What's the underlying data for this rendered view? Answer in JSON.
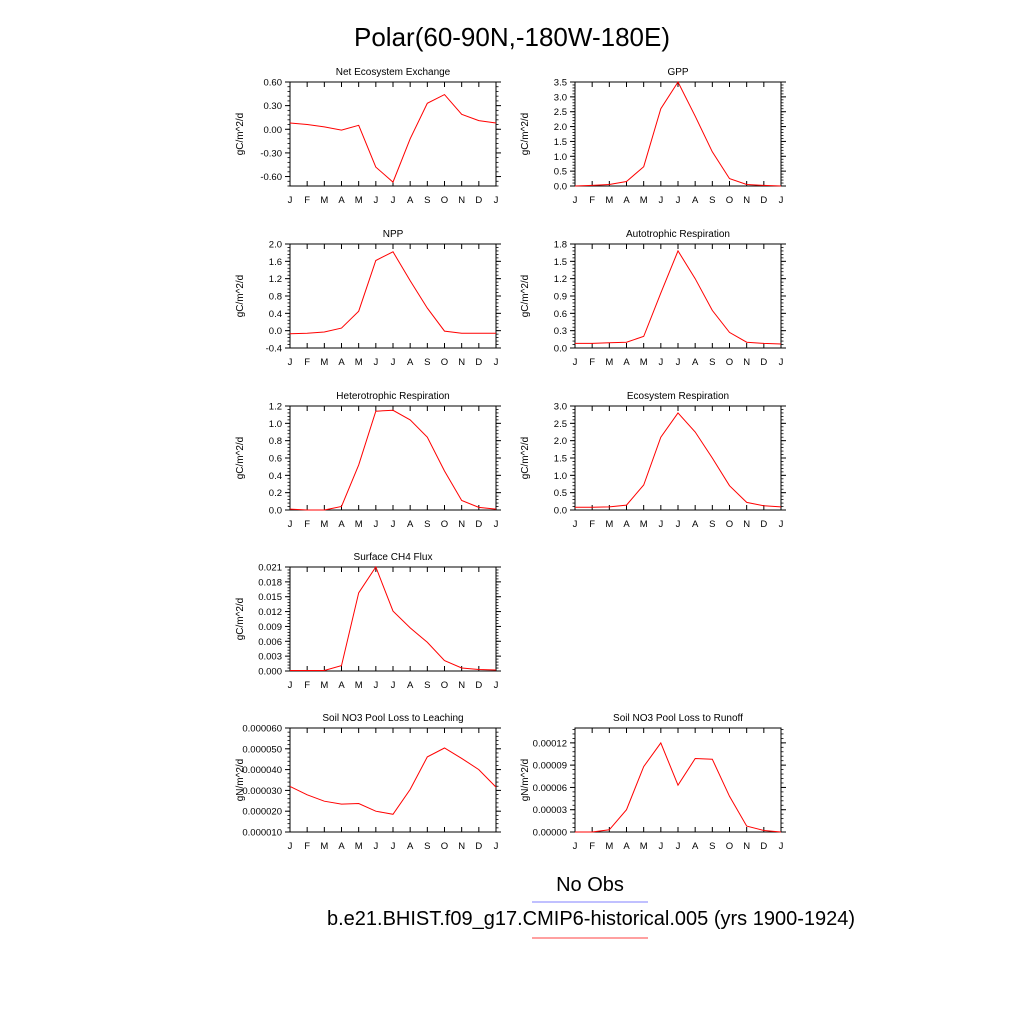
{
  "page": {
    "title": "Polar(60-90N,-180W-180E)",
    "legend": [
      {
        "label": "No Obs",
        "color": "#8080ff"
      },
      {
        "label": "b.e21.BHIST.f09_g17.CMIP6-historical.005 (yrs 1900-1924)",
        "color": "#ff4040"
      }
    ]
  },
  "chart_data": [
    {
      "type": "line",
      "title": "Net Ecosystem Exchange",
      "ylabel": "gC/m^2/d",
      "xlabel": "",
      "x": [
        "J",
        "F",
        "M",
        "A",
        "M",
        "J",
        "J",
        "A",
        "S",
        "O",
        "N",
        "D",
        "J"
      ],
      "ylim": [
        -0.72,
        0.6
      ],
      "yticks": [
        -0.6,
        -0.3,
        0.0,
        0.3,
        0.6
      ],
      "ytick_labels": [
        "-0.60",
        "-0.30",
        "0.00",
        "0.30",
        "0.60"
      ],
      "series": [
        {
          "color": "#ff0000",
          "values": [
            0.08,
            0.06,
            0.03,
            -0.01,
            0.05,
            -0.48,
            -0.67,
            -0.12,
            0.33,
            0.44,
            0.19,
            0.11,
            0.08
          ]
        }
      ]
    },
    {
      "type": "line",
      "title": "GPP",
      "ylabel": "gC/m^2/d",
      "xlabel": "",
      "x": [
        "J",
        "F",
        "M",
        "A",
        "M",
        "J",
        "J",
        "A",
        "S",
        "O",
        "N",
        "D",
        "J"
      ],
      "ylim": [
        0,
        3.5
      ],
      "yticks": [
        0,
        0.5,
        1.0,
        1.5,
        2.0,
        2.5,
        3.0,
        3.5
      ],
      "ytick_labels": [
        "0.0",
        "0.5",
        "1.0",
        "1.5",
        "2.0",
        "2.5",
        "3.0",
        "3.5"
      ],
      "series": [
        {
          "color": "#ff0000",
          "values": [
            0.0,
            0.02,
            0.05,
            0.15,
            0.65,
            2.6,
            3.5,
            2.35,
            1.15,
            0.25,
            0.05,
            0.02,
            0.0
          ]
        }
      ]
    },
    {
      "type": "line",
      "title": "NPP",
      "ylabel": "gC/m^2/d",
      "xlabel": "",
      "x": [
        "J",
        "F",
        "M",
        "A",
        "M",
        "J",
        "J",
        "A",
        "S",
        "O",
        "N",
        "D",
        "J"
      ],
      "ylim": [
        -0.4,
        2.0
      ],
      "yticks": [
        -0.4,
        0.0,
        0.4,
        0.8,
        1.2,
        1.6,
        2.0
      ],
      "ytick_labels": [
        "-0.4",
        "0.0",
        "0.4",
        "0.8",
        "1.2",
        "1.6",
        "2.0"
      ],
      "series": [
        {
          "color": "#ff0000",
          "values": [
            -0.07,
            -0.06,
            -0.03,
            0.06,
            0.45,
            1.62,
            1.82,
            1.15,
            0.52,
            -0.01,
            -0.06,
            -0.06,
            -0.06
          ]
        }
      ]
    },
    {
      "type": "line",
      "title": "Autotrophic Respiration",
      "ylabel": "gC/m^2/d",
      "xlabel": "",
      "x": [
        "J",
        "F",
        "M",
        "A",
        "M",
        "J",
        "J",
        "A",
        "S",
        "O",
        "N",
        "D",
        "J"
      ],
      "ylim": [
        0,
        1.8
      ],
      "yticks": [
        0,
        0.3,
        0.6,
        0.9,
        1.2,
        1.5,
        1.8
      ],
      "ytick_labels": [
        "0.0",
        "0.3",
        "0.6",
        "0.9",
        "1.2",
        "1.5",
        "1.8"
      ],
      "series": [
        {
          "color": "#ff0000",
          "values": [
            0.08,
            0.08,
            0.09,
            0.1,
            0.2,
            0.95,
            1.68,
            1.2,
            0.65,
            0.27,
            0.1,
            0.08,
            0.07
          ]
        }
      ]
    },
    {
      "type": "line",
      "title": "Heterotrophic Respiration",
      "ylabel": "gC/m^2/d",
      "xlabel": "",
      "x": [
        "J",
        "F",
        "M",
        "A",
        "M",
        "J",
        "J",
        "A",
        "S",
        "O",
        "N",
        "D",
        "J"
      ],
      "ylim": [
        0,
        1.2
      ],
      "yticks": [
        0,
        0.2,
        0.4,
        0.6,
        0.8,
        1.0,
        1.2
      ],
      "ytick_labels": [
        "0.0",
        "0.2",
        "0.4",
        "0.6",
        "0.8",
        "1.0",
        "1.2"
      ],
      "series": [
        {
          "color": "#ff0000",
          "values": [
            0.01,
            0.0,
            0.0,
            0.04,
            0.52,
            1.14,
            1.15,
            1.04,
            0.84,
            0.45,
            0.11,
            0.03,
            0.01
          ]
        }
      ]
    },
    {
      "type": "line",
      "title": "Ecosystem Respiration",
      "ylabel": "gC/m^2/d",
      "xlabel": "",
      "x": [
        "J",
        "F",
        "M",
        "A",
        "M",
        "J",
        "J",
        "A",
        "S",
        "O",
        "N",
        "D",
        "J"
      ],
      "ylim": [
        0,
        3.0
      ],
      "yticks": [
        0,
        0.5,
        1.0,
        1.5,
        2.0,
        2.5,
        3.0
      ],
      "ytick_labels": [
        "0.0",
        "0.5",
        "1.0",
        "1.5",
        "2.0",
        "2.5",
        "3.0"
      ],
      "series": [
        {
          "color": "#ff0000",
          "values": [
            0.08,
            0.08,
            0.09,
            0.14,
            0.72,
            2.1,
            2.8,
            2.25,
            1.5,
            0.7,
            0.22,
            0.12,
            0.09
          ]
        }
      ]
    },
    {
      "type": "line",
      "title": "Surface CH4 Flux",
      "ylabel": "gC/m^2/d",
      "xlabel": "",
      "x": [
        "J",
        "F",
        "M",
        "A",
        "M",
        "J",
        "J",
        "A",
        "S",
        "O",
        "N",
        "D",
        "J"
      ],
      "ylim": [
        0,
        0.021
      ],
      "yticks": [
        0,
        0.003,
        0.006,
        0.009,
        0.012,
        0.015,
        0.018,
        0.021
      ],
      "ytick_labels": [
        "0.000",
        "0.003",
        "0.006",
        "0.009",
        "0.012",
        "0.015",
        "0.018",
        "0.021"
      ],
      "series": [
        {
          "color": "#ff0000",
          "values": [
            0.0001,
            0.0001,
            0.0001,
            0.0011,
            0.0158,
            0.021,
            0.0121,
            0.0087,
            0.0058,
            0.0021,
            0.0006,
            0.0003,
            0.0002
          ]
        }
      ]
    },
    {
      "type": "line",
      "title": "Soil NO3 Pool Loss to Leaching",
      "ylabel": "gN/m^2/d",
      "xlabel": "",
      "x": [
        "J",
        "F",
        "M",
        "A",
        "M",
        "J",
        "J",
        "A",
        "S",
        "O",
        "N",
        "D",
        "J"
      ],
      "ylim": [
        1e-05,
        6e-05
      ],
      "yticks": [
        1e-05,
        2e-05,
        3e-05,
        4e-05,
        5e-05,
        6e-05
      ],
      "ytick_labels": [
        "0.000010",
        "0.000020",
        "0.000030",
        "0.000040",
        "0.000050",
        "0.000060"
      ],
      "series": [
        {
          "color": "#ff0000",
          "values": [
            3.19e-05,
            2.79e-05,
            2.48e-05,
            2.34e-05,
            2.37e-05,
            2e-05,
            1.85e-05,
            3.05e-05,
            4.61e-05,
            5.04e-05,
            4.54e-05,
            4e-05,
            3.16e-05
          ]
        }
      ]
    },
    {
      "type": "line",
      "title": "Soil NO3 Pool Loss to Runoff",
      "ylabel": "gN/m^2/d",
      "xlabel": "",
      "x": [
        "J",
        "F",
        "M",
        "A",
        "M",
        "J",
        "J",
        "A",
        "S",
        "O",
        "N",
        "D",
        "J"
      ],
      "ylim": [
        0,
        0.00014
      ],
      "yticks": [
        0,
        3e-05,
        6e-05,
        9e-05,
        0.00012
      ],
      "ytick_labels": [
        "0.00000",
        "0.00003",
        "0.00006",
        "0.00009",
        "0.00012"
      ],
      "series": [
        {
          "color": "#ff0000",
          "values": [
            0.0,
            0.0,
            3e-06,
            3e-05,
            8.8e-05,
            0.00012,
            6.3e-05,
            9.9e-05,
            9.8e-05,
            4.8e-05,
            8e-06,
            2e-06,
            0.0
          ]
        }
      ]
    }
  ]
}
